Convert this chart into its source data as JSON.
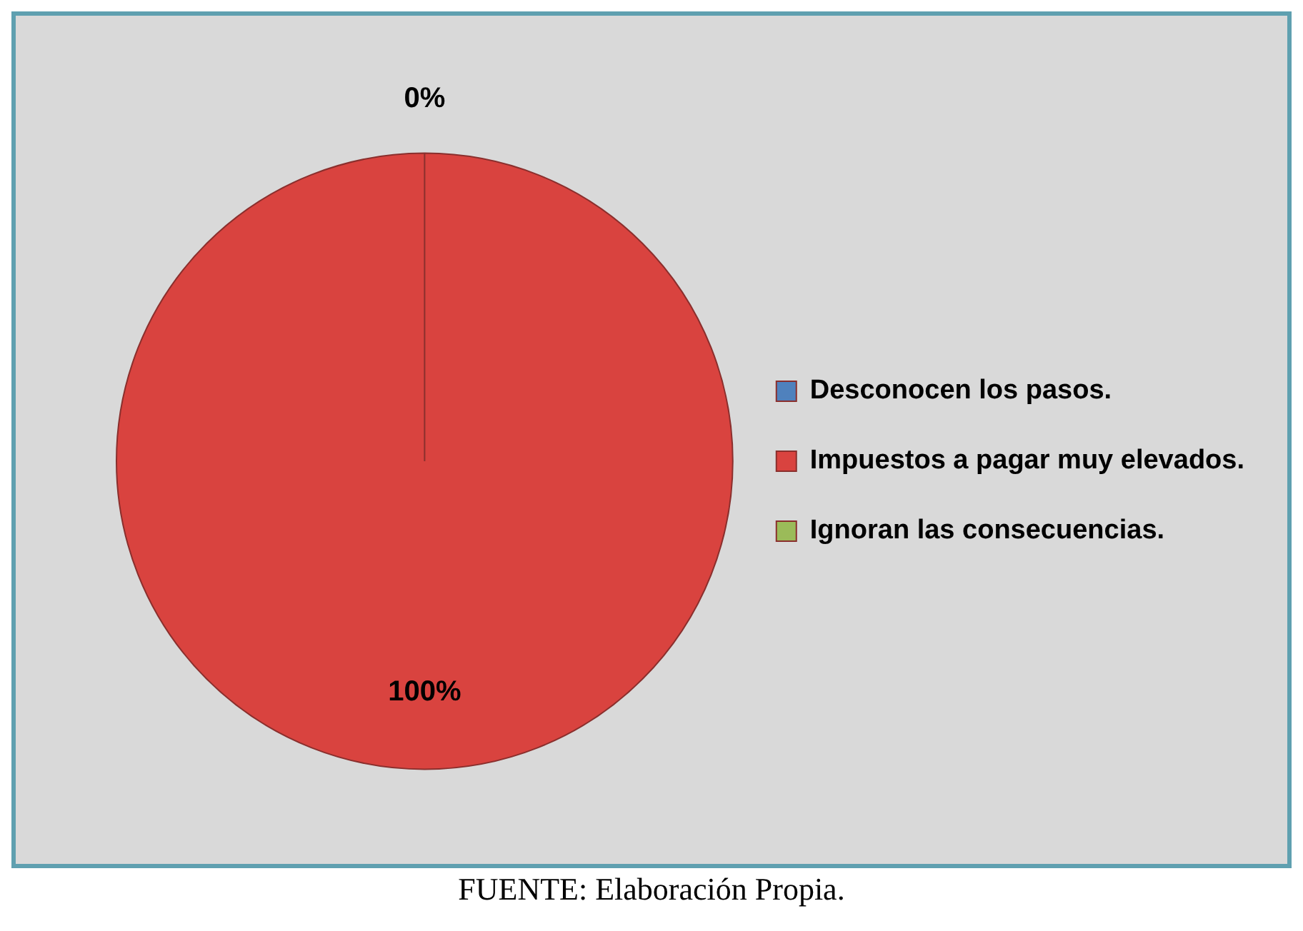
{
  "chart_data": {
    "type": "pie",
    "categories": [
      "Desconocen los pasos.",
      "Impuestos a pagar muy elevados.",
      "Ignoran las consecuencias."
    ],
    "values": [
      0,
      100,
      0
    ],
    "colors": [
      "#4f81bd",
      "#d9433f",
      "#9bbb59"
    ],
    "value_labels": [
      "0%",
      "100%",
      null
    ],
    "legend": "right",
    "annotations": [
      "FUENTE: Elaboración Propia."
    ]
  }
}
